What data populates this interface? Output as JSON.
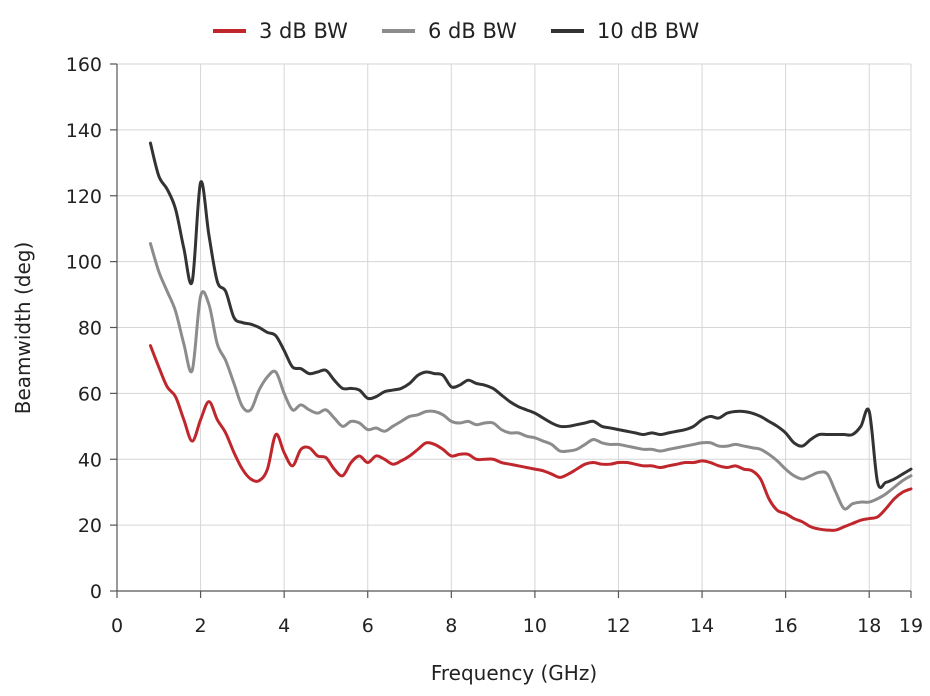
{
  "chart_data": {
    "type": "line",
    "title": "",
    "xlabel": "Frequency (GHz)",
    "ylabel": "Beamwidth (deg)",
    "xlim": [
      0,
      19
    ],
    "ylim": [
      0,
      160
    ],
    "xticks": [
      0,
      2,
      4,
      6,
      8,
      10,
      12,
      14,
      16,
      18,
      19
    ],
    "yticks": [
      0,
      20,
      40,
      60,
      80,
      100,
      120,
      140,
      160
    ],
    "grid": true,
    "legend_position": "top-center",
    "series": [
      {
        "name": "3 dB BW",
        "color": "#c0272d",
        "x": [
          0.8,
          1.0,
          1.2,
          1.4,
          1.6,
          1.8,
          2.0,
          2.2,
          2.4,
          2.6,
          2.8,
          3.0,
          3.2,
          3.4,
          3.6,
          3.8,
          4.0,
          4.2,
          4.4,
          4.6,
          4.8,
          5.0,
          5.2,
          5.4,
          5.6,
          5.8,
          6.0,
          6.2,
          6.4,
          6.6,
          6.8,
          7.0,
          7.2,
          7.4,
          7.6,
          7.8,
          8.0,
          8.2,
          8.4,
          8.6,
          8.8,
          9.0,
          9.2,
          9.4,
          9.6,
          9.8,
          10.0,
          10.2,
          10.4,
          10.6,
          10.8,
          11.0,
          11.2,
          11.4,
          11.6,
          11.8,
          12.0,
          12.2,
          12.4,
          12.6,
          12.8,
          13.0,
          13.2,
          13.4,
          13.6,
          13.8,
          14.0,
          14.2,
          14.4,
          14.6,
          14.8,
          15.0,
          15.2,
          15.4,
          15.6,
          15.8,
          16.0,
          16.2,
          16.4,
          16.6,
          16.8,
          17.0,
          17.2,
          17.4,
          17.6,
          17.8,
          18.0,
          18.2,
          18.4,
          18.6,
          18.8,
          19.0
        ],
        "values": [
          74.5,
          68,
          62,
          59,
          52,
          45.5,
          52,
          57.5,
          52,
          48,
          42,
          37,
          34,
          33.5,
          37,
          47.5,
          42,
          38,
          43,
          43.5,
          41,
          40.5,
          37,
          35,
          39,
          41,
          39,
          41,
          40,
          38.5,
          39.5,
          41,
          43,
          45,
          44.5,
          43,
          41,
          41.5,
          41.5,
          40,
          40,
          40,
          39,
          38.5,
          38,
          37.5,
          37,
          36.5,
          35.5,
          34.5,
          35.5,
          37,
          38.5,
          39,
          38.5,
          38.5,
          39,
          39,
          38.5,
          38,
          38,
          37.5,
          38,
          38.5,
          39,
          39,
          39.5,
          39,
          38,
          37.5,
          38,
          37,
          36.5,
          34,
          28,
          24.5,
          23.5,
          22,
          21,
          19.5,
          18.8,
          18.5,
          18.5,
          19.5,
          20.5,
          21.5,
          22,
          22.5,
          25,
          28,
          30,
          31
        ]
      },
      {
        "name": "6 dB BW",
        "color": "#8c8c8c",
        "x": [
          0.8,
          1.0,
          1.2,
          1.4,
          1.6,
          1.8,
          2.0,
          2.2,
          2.4,
          2.6,
          2.8,
          3.0,
          3.2,
          3.4,
          3.6,
          3.8,
          4.0,
          4.2,
          4.4,
          4.6,
          4.8,
          5.0,
          5.2,
          5.4,
          5.6,
          5.8,
          6.0,
          6.2,
          6.4,
          6.6,
          6.8,
          7.0,
          7.2,
          7.4,
          7.6,
          7.8,
          8.0,
          8.2,
          8.4,
          8.6,
          8.8,
          9.0,
          9.2,
          9.4,
          9.6,
          9.8,
          10.0,
          10.2,
          10.4,
          10.6,
          10.8,
          11.0,
          11.2,
          11.4,
          11.6,
          11.8,
          12.0,
          12.2,
          12.4,
          12.6,
          12.8,
          13.0,
          13.2,
          13.4,
          13.6,
          13.8,
          14.0,
          14.2,
          14.4,
          14.6,
          14.8,
          15.0,
          15.2,
          15.4,
          15.6,
          15.8,
          16.0,
          16.2,
          16.4,
          16.6,
          16.8,
          17.0,
          17.2,
          17.4,
          17.6,
          17.8,
          18.0,
          18.2,
          18.4,
          18.6,
          18.8,
          19.0
        ],
        "values": [
          105.5,
          97,
          91,
          85,
          75,
          67,
          89.5,
          87,
          75,
          70,
          63,
          56,
          55,
          61,
          65,
          66.5,
          60,
          55,
          56.5,
          55,
          54,
          55,
          52.5,
          50,
          51.5,
          51,
          49,
          49.5,
          48.5,
          50,
          51.5,
          53,
          53.5,
          54.5,
          54.5,
          53.5,
          51.5,
          51,
          51.5,
          50.5,
          51,
          51,
          49,
          48,
          48,
          47,
          46.5,
          45.5,
          44.5,
          42.5,
          42.5,
          43,
          44.5,
          46,
          45,
          44.5,
          44.5,
          44,
          43.5,
          43,
          43,
          42.5,
          43,
          43.5,
          44,
          44.5,
          45,
          45,
          44,
          44,
          44.5,
          44,
          43.5,
          43,
          41.5,
          39.5,
          37,
          35,
          34,
          35,
          36,
          35.5,
          30,
          25,
          26.5,
          27,
          27,
          28,
          29.5,
          31.5,
          33.5,
          35
        ]
      },
      {
        "name": "10 dB BW",
        "color": "#333333",
        "x": [
          0.8,
          1.0,
          1.2,
          1.4,
          1.6,
          1.8,
          2.0,
          2.2,
          2.4,
          2.6,
          2.8,
          3.0,
          3.2,
          3.4,
          3.6,
          3.8,
          4.0,
          4.2,
          4.4,
          4.6,
          4.8,
          5.0,
          5.2,
          5.4,
          5.6,
          5.8,
          6.0,
          6.2,
          6.4,
          6.6,
          6.8,
          7.0,
          7.2,
          7.4,
          7.6,
          7.8,
          8.0,
          8.2,
          8.4,
          8.6,
          8.8,
          9.0,
          9.2,
          9.4,
          9.6,
          9.8,
          10.0,
          10.2,
          10.4,
          10.6,
          10.8,
          11.0,
          11.2,
          11.4,
          11.6,
          11.8,
          12.0,
          12.2,
          12.4,
          12.6,
          12.8,
          13.0,
          13.2,
          13.4,
          13.6,
          13.8,
          14.0,
          14.2,
          14.4,
          14.6,
          14.8,
          15.0,
          15.2,
          15.4,
          15.6,
          15.8,
          16.0,
          16.2,
          16.4,
          16.6,
          16.8,
          17.0,
          17.2,
          17.4,
          17.6,
          17.8,
          18.0,
          18.2,
          18.4,
          18.6,
          18.8,
          19.0
        ],
        "values": [
          136,
          126,
          122,
          116,
          104,
          94,
          124,
          108,
          94,
          91,
          83,
          81.5,
          81,
          80,
          78.5,
          77.5,
          73,
          68,
          67.5,
          66,
          66.5,
          67,
          64,
          61.5,
          61.5,
          61,
          58.5,
          59,
          60.5,
          61,
          61.5,
          63,
          65.5,
          66.5,
          66,
          65.5,
          62,
          62.5,
          64,
          63,
          62.5,
          61.5,
          59.5,
          57.5,
          56,
          55,
          54,
          52.5,
          51,
          50,
          50,
          50.5,
          51,
          51.5,
          50,
          49.5,
          49,
          48.5,
          48,
          47.5,
          48,
          47.5,
          48,
          48.5,
          49,
          50,
          52,
          53,
          52.5,
          54,
          54.5,
          54.5,
          54,
          53,
          51.5,
          50,
          48,
          45,
          44,
          46,
          47.5,
          47.5,
          47.5,
          47.5,
          47.5,
          50,
          54.5,
          33,
          33,
          34,
          35.5,
          37
        ]
      }
    ]
  }
}
